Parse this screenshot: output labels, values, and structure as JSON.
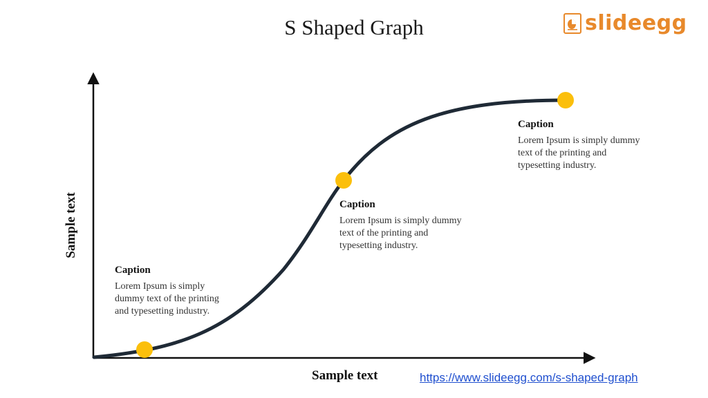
{
  "title": "S Shaped Graph",
  "logo": {
    "text": "slideegg",
    "icon": "egg-chart-icon",
    "color": "#e8892b"
  },
  "axes": {
    "x_label": "Sample text",
    "y_label": "Sample text"
  },
  "captions": [
    {
      "title": "Caption",
      "body": "Lorem Ipsum is simply dummy text of the printing and typesetting industry."
    },
    {
      "title": "Caption",
      "body": "Lorem Ipsum is simply dummy text of the printing and typesetting industry."
    },
    {
      "title": "Caption",
      "body": "Lorem Ipsum is simply dummy text of the printing and typesetting industry."
    }
  ],
  "link": "https://www.slideegg.com/s-shaped-graph",
  "colors": {
    "curve": "#1f2a36",
    "marker": "#fbbf0c",
    "axis": "#111111"
  }
}
